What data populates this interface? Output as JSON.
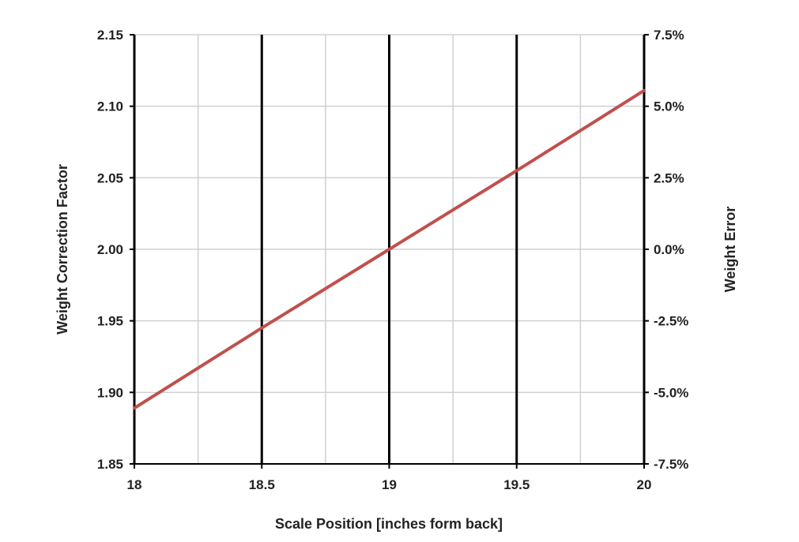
{
  "chart_data": {
    "type": "line",
    "title": "",
    "xlabel": "Scale Position [inches form back]",
    "ylabel": "Weight Correction Factor",
    "y2label": "Weight Error",
    "xlim": [
      18,
      20
    ],
    "ylim": [
      1.85,
      2.15
    ],
    "y2lim": [
      -7.5,
      7.5
    ],
    "x_ticks": [
      "18",
      "18.5",
      "19",
      "19.5",
      "20"
    ],
    "y_ticks": [
      "1.85",
      "1.90",
      "1.95",
      "2.00",
      "2.05",
      "2.10",
      "2.15"
    ],
    "y2_ticks": [
      "-7.5%",
      "-5.0%",
      "-2.5%",
      "0.0%",
      "2.5%",
      "5.0%",
      "7.5%"
    ],
    "grid": true,
    "series": [
      {
        "x": [
          18,
          18.5,
          19,
          19.5,
          20
        ],
        "values": [
          1.889,
          1.945,
          2.0,
          2.055,
          2.111
        ]
      }
    ],
    "colors": {
      "series": "#c0504d",
      "major_grid": "#000000",
      "minor_grid": "#d0d0d0"
    }
  }
}
